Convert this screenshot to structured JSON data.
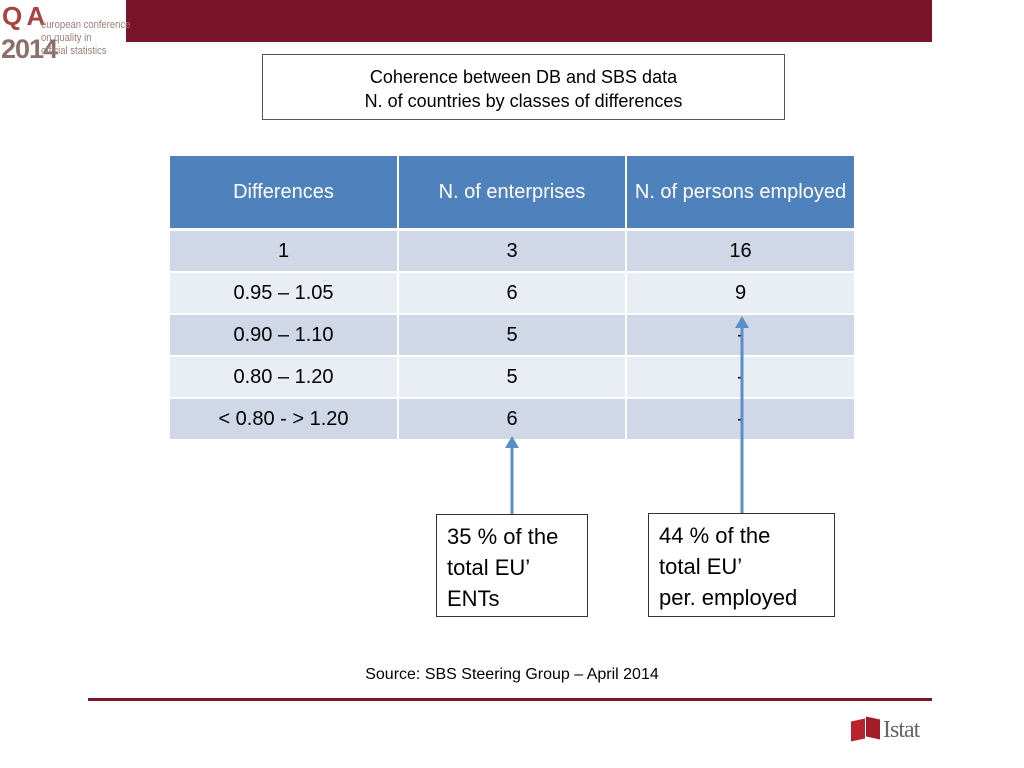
{
  "logo": {
    "mark": "Q A",
    "year": "2014",
    "conference_lines": [
      "european conference",
      "on quality in",
      "official statistics"
    ]
  },
  "title": {
    "line1": "Coherence between DB and SBS data",
    "line2": "N. of countries by classes of differences"
  },
  "table": {
    "headers": [
      "Differences",
      "N. of enterprises",
      "N. of persons employed"
    ],
    "rows": [
      [
        "1",
        "3",
        "16"
      ],
      [
        "0.95 – 1.05",
        "6",
        "9"
      ],
      [
        "0.90 – 1.10",
        "5",
        "-"
      ],
      [
        "0.80 – 1.20",
        "5",
        "-"
      ],
      [
        "< 0.80 - > 1.20",
        "6",
        "-"
      ]
    ]
  },
  "callouts": {
    "enterprises": [
      "35 % of the",
      "total EU’",
      "ENTs"
    ],
    "persons": [
      "44 % of the",
      "total EU’",
      "per. employed"
    ]
  },
  "source": "Source: SBS Steering Group – April 2014",
  "footer_logo": "Istat",
  "colors": {
    "brand_bar": "#7a1428",
    "header_blue": "#4f81bd",
    "row_odd": "#d0d8e8",
    "row_even": "#e9edf4",
    "arrow": "#5b8ec9"
  }
}
